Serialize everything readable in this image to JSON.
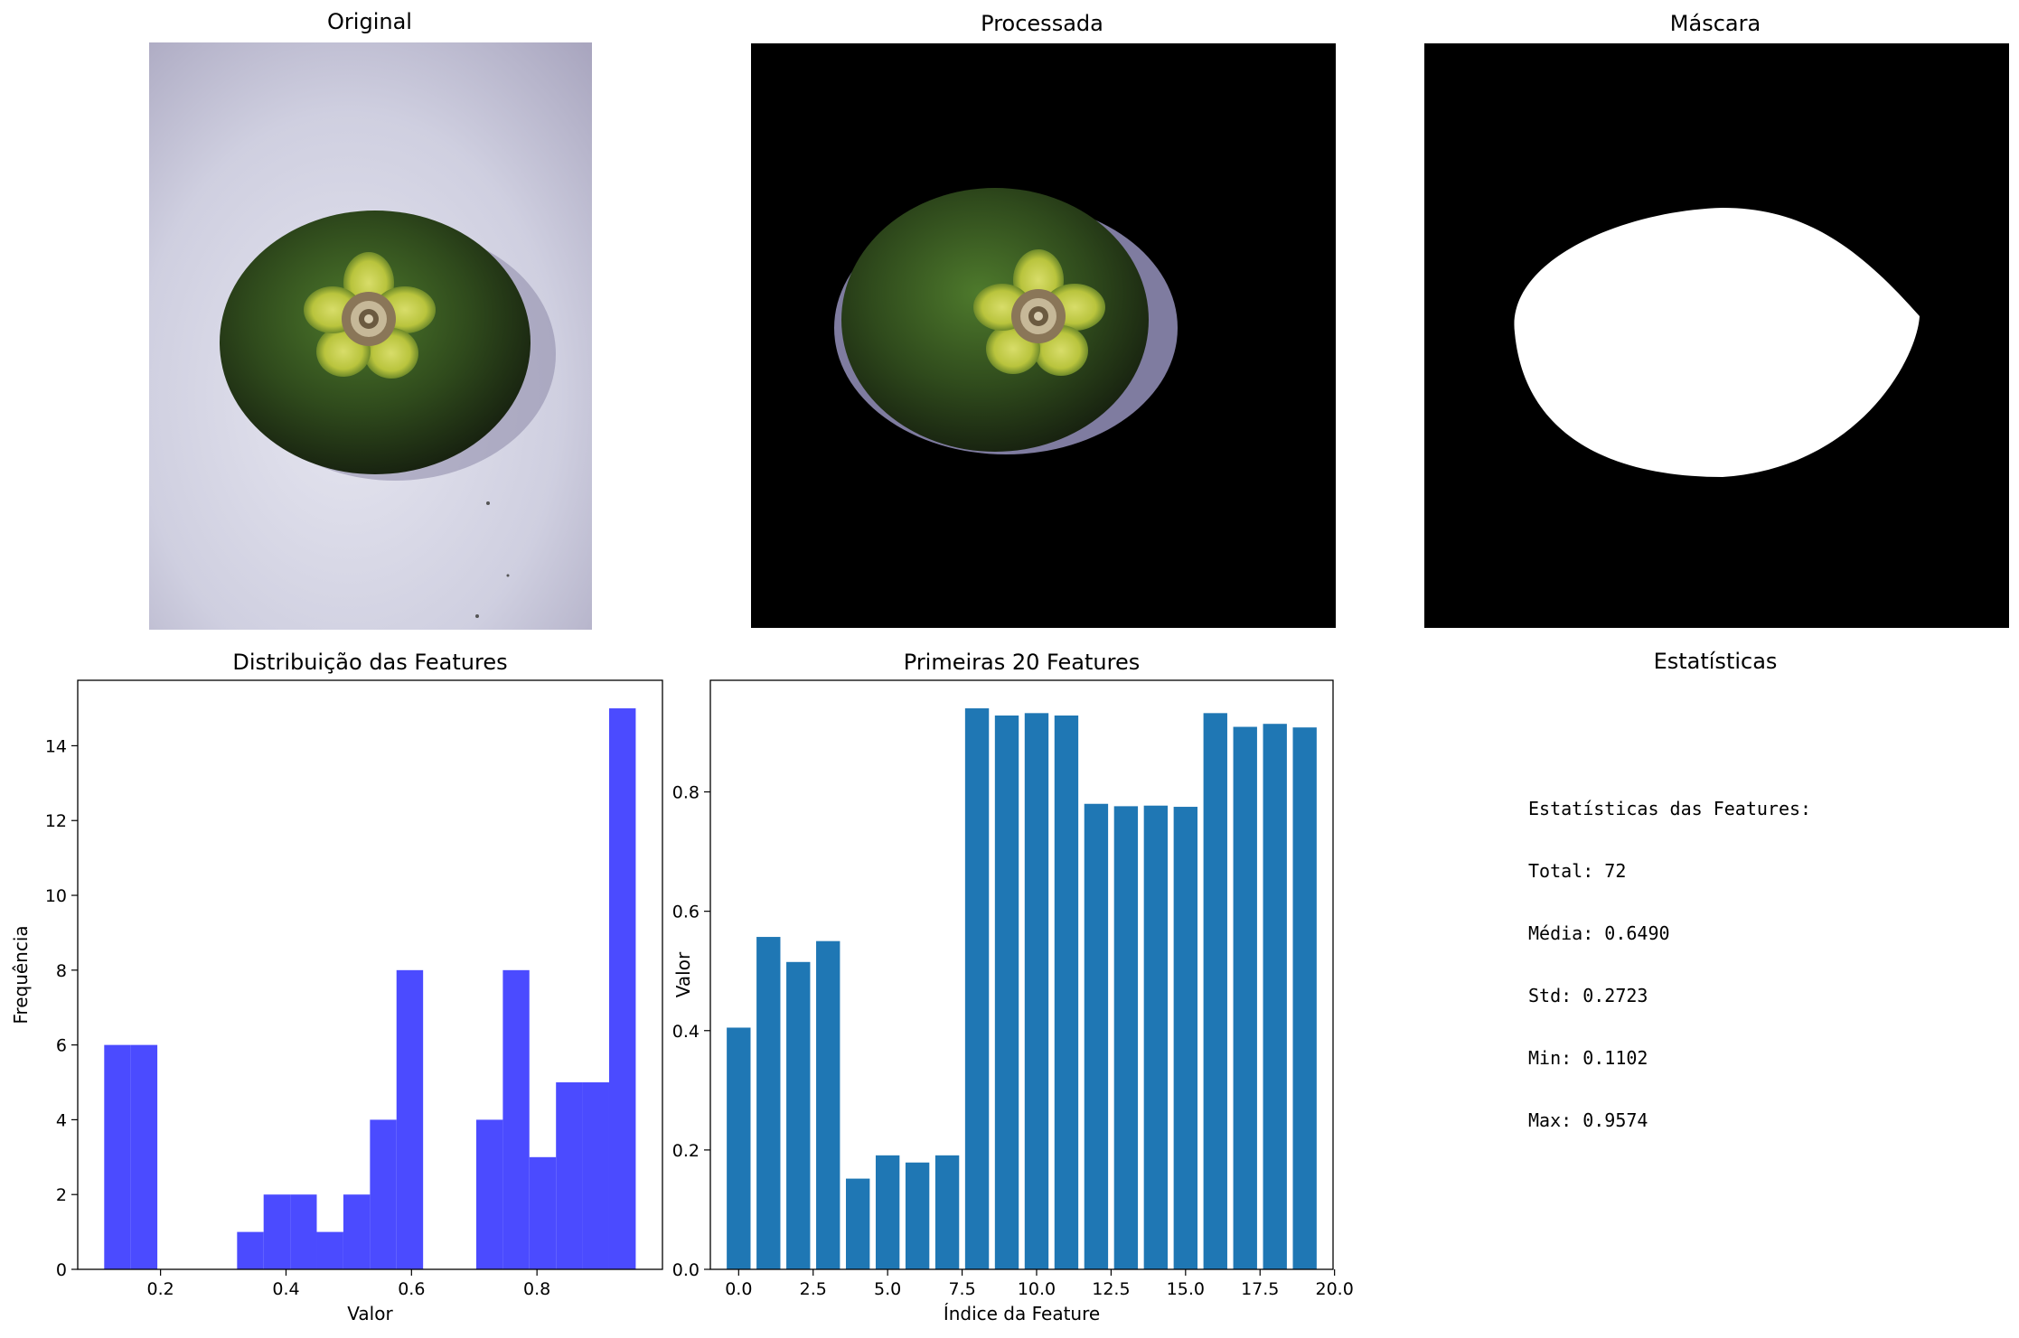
{
  "panels": {
    "original": {
      "title": "Original"
    },
    "processed": {
      "title": "Processada"
    },
    "mask": {
      "title": "Máscara"
    },
    "stats": {
      "title": "Estatísticas",
      "lines": [
        "Estatísticas das Features:",
        "Total: 72",
        "Média: 0.6490",
        "Std: 0.2723",
        "Min: 0.1102",
        "Max: 0.9574"
      ]
    }
  },
  "colors": {
    "histogram": "#4b4bff",
    "bars": "#1f77b4"
  },
  "chart_data": [
    {
      "type": "bar",
      "title": "Distribuição das Features",
      "xlabel": "Valor",
      "ylabel": "Frequência",
      "bins": [
        {
          "x0": 0.1102,
          "x1": 0.1525,
          "count": 6
        },
        {
          "x0": 0.1525,
          "x1": 0.1949,
          "count": 6
        },
        {
          "x0": 0.1949,
          "x1": 0.2373,
          "count": 0
        },
        {
          "x0": 0.2373,
          "x1": 0.2796,
          "count": 0
        },
        {
          "x0": 0.2796,
          "x1": 0.322,
          "count": 0
        },
        {
          "x0": 0.322,
          "x1": 0.3643,
          "count": 1
        },
        {
          "x0": 0.3643,
          "x1": 0.4067,
          "count": 2
        },
        {
          "x0": 0.4067,
          "x1": 0.449,
          "count": 2
        },
        {
          "x0": 0.449,
          "x1": 0.4914,
          "count": 1
        },
        {
          "x0": 0.4914,
          "x1": 0.5338,
          "count": 2
        },
        {
          "x0": 0.5338,
          "x1": 0.5761,
          "count": 4
        },
        {
          "x0": 0.5761,
          "x1": 0.6185,
          "count": 8
        },
        {
          "x0": 0.6185,
          "x1": 0.6608,
          "count": 0
        },
        {
          "x0": 0.6608,
          "x1": 0.7032,
          "count": 0
        },
        {
          "x0": 0.7032,
          "x1": 0.7456,
          "count": 4
        },
        {
          "x0": 0.7456,
          "x1": 0.7879,
          "count": 8
        },
        {
          "x0": 0.7879,
          "x1": 0.8303,
          "count": 3
        },
        {
          "x0": 0.8303,
          "x1": 0.8726,
          "count": 5
        },
        {
          "x0": 0.8726,
          "x1": 0.915,
          "count": 5
        },
        {
          "x0": 0.915,
          "x1": 0.9574,
          "count": 15
        }
      ],
      "xlim": [
        0.068,
        1.0
      ],
      "ylim": [
        0,
        15.75
      ],
      "xticks": [
        0.2,
        0.4,
        0.6,
        0.8
      ],
      "yticks": [
        0,
        2,
        4,
        6,
        8,
        10,
        12,
        14
      ],
      "grid": false
    },
    {
      "type": "bar",
      "title": "Primeiras 20 Features",
      "xlabel": "Índice da Feature",
      "ylabel": "Valor",
      "x": [
        0,
        1,
        2,
        3,
        4,
        5,
        6,
        7,
        8,
        9,
        10,
        11,
        12,
        13,
        14,
        15,
        16,
        17,
        18,
        19
      ],
      "values": [
        0.405,
        0.557,
        0.515,
        0.55,
        0.152,
        0.191,
        0.179,
        0.191,
        0.94,
        0.928,
        0.932,
        0.928,
        0.78,
        0.776,
        0.777,
        0.775,
        0.932,
        0.909,
        0.914,
        0.908
      ],
      "xlim": [
        -0.95,
        19.95
      ],
      "ylim": [
        0,
        0.987
      ],
      "xticks": [
        "0.0",
        "2.5",
        "5.0",
        "7.5",
        "10.0",
        "12.5",
        "15.0",
        "17.5",
        "20.0"
      ],
      "yticks": [
        "0.0",
        "0.2",
        "0.4",
        "0.6",
        "0.8"
      ],
      "grid": false
    }
  ]
}
